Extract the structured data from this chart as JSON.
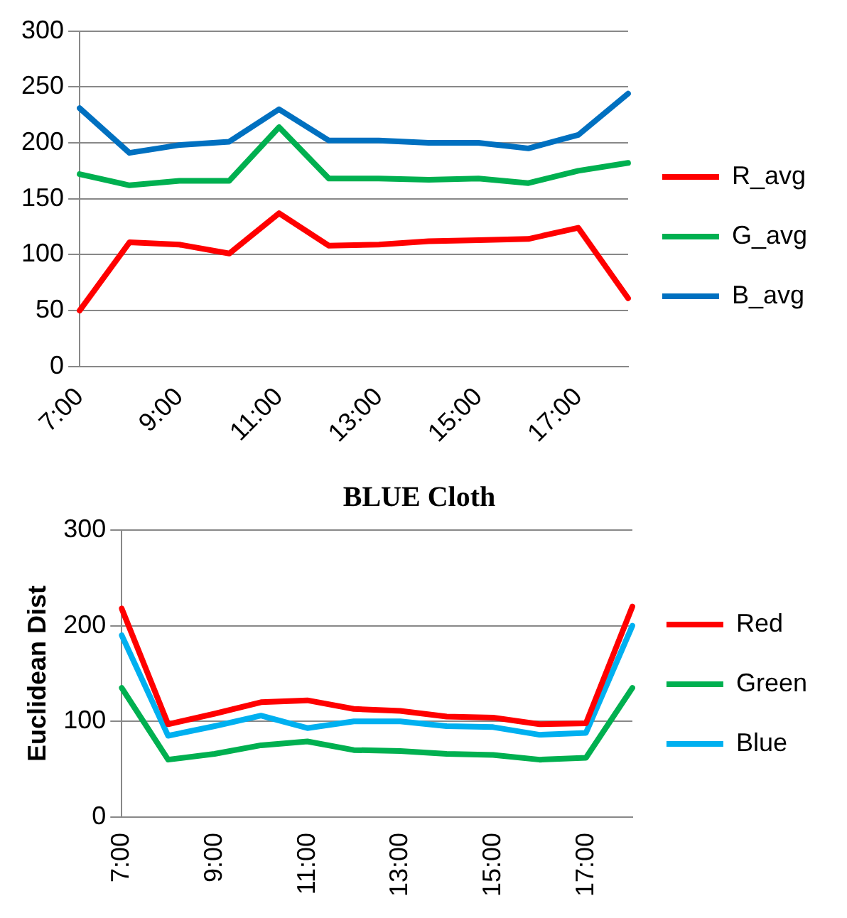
{
  "chart_data": [
    {
      "type": "line",
      "categories": [
        "7:00",
        null,
        "9:00",
        null,
        "11:00",
        null,
        "13:00",
        null,
        "15:00",
        null,
        "17:00",
        null
      ],
      "series": [
        {
          "name": "R_avg",
          "color": "#ff0000",
          "values": [
            50,
            111,
            109,
            101,
            137,
            108,
            109,
            112,
            113,
            114,
            124,
            61
          ]
        },
        {
          "name": "G_avg",
          "color": "#00b050",
          "values": [
            172,
            162,
            166,
            166,
            214,
            168,
            168,
            167,
            168,
            164,
            175,
            182
          ]
        },
        {
          "name": "B_avg",
          "color": "#0070c0",
          "values": [
            231,
            191,
            198,
            201,
            230,
            202,
            202,
            200,
            200,
            195,
            207,
            244
          ]
        }
      ],
      "ylim": [
        0,
        300
      ],
      "yticks": [
        0,
        50,
        100,
        150,
        200,
        250,
        300
      ],
      "grid": "y",
      "legend": "right",
      "marker": "none",
      "line_style": "solid"
    },
    {
      "type": "line",
      "title": "BLUE Cloth",
      "ylabel": "Euclidean Dist",
      "categories": [
        "7:00",
        null,
        "9:00",
        null,
        "11:00",
        null,
        "13:00",
        null,
        "15:00",
        null,
        "17:00",
        null
      ],
      "series": [
        {
          "name": "Red",
          "color": "#ff0000",
          "values": [
            218,
            97,
            108,
            120,
            122,
            113,
            111,
            105,
            104,
            97,
            98,
            220
          ]
        },
        {
          "name": "Green",
          "color": "#00b050",
          "values": [
            135,
            60,
            66,
            75,
            79,
            70,
            69,
            66,
            65,
            60,
            62,
            135
          ]
        },
        {
          "name": "Blue",
          "color": "#00b0f0",
          "values": [
            190,
            85,
            95,
            106,
            93,
            100,
            100,
            95,
            94,
            86,
            88,
            200
          ]
        }
      ],
      "ylim": [
        0,
        300
      ],
      "yticks": [
        0,
        100,
        200,
        300
      ],
      "grid": "y",
      "legend": "right",
      "marker": "none",
      "line_style": "solid"
    }
  ]
}
